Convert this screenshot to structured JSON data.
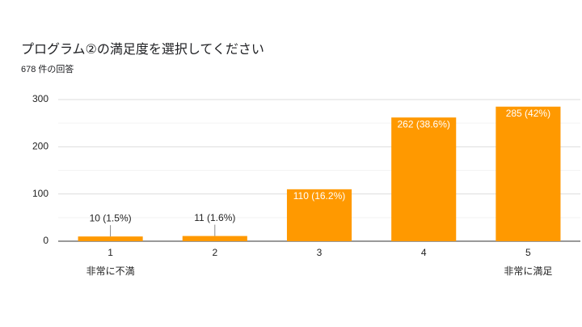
{
  "chart_data": {
    "type": "bar",
    "title": "プログラム②の満足度を選択してください",
    "subtitle": "678 件の回答",
    "categories": [
      "1",
      "2",
      "3",
      "4",
      "5"
    ],
    "values": [
      10,
      11,
      110,
      262,
      285
    ],
    "value_labels": [
      "10 (1.5%)",
      "11 (1.6%)",
      "110 (16.2%)",
      "262 (38.6%)",
      "285 (42%)"
    ],
    "scale_end_labels": [
      "非常に不満",
      "非常に満足"
    ],
    "color": "#ff9900",
    "ylim": [
      0,
      300
    ],
    "yticks": [
      0,
      100,
      200,
      300
    ],
    "minor_yticks": [
      50,
      150,
      250
    ],
    "grid": true
  }
}
